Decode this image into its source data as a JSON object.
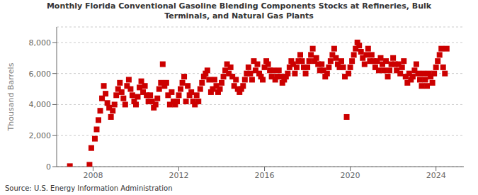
{
  "chart_data": {
    "type": "scatter",
    "title": "Monthly Florida Conventional Gasoline Blending Components Stocks at Refineries, Bulk\nTerminals, and Natural Gas Plants",
    "ylabel": "Thousand Barrels",
    "annotations": [
      "Source: U.S. Energy Information Administration"
    ],
    "color": "#cc0000",
    "marker": "square",
    "grid": true,
    "xlim": [
      2006.3,
      2025.3
    ],
    "xticks": [
      2008,
      2012,
      2016,
      2020,
      2024
    ],
    "ylim": [
      0,
      9000
    ],
    "yticks": [
      0,
      {
        "value": 2000,
        "label": "2,000"
      },
      {
        "value": 4000,
        "label": "4,000"
      },
      {
        "value": 6000,
        "label": "6,000"
      },
      {
        "value": 8000,
        "label": "8,000"
      }
    ],
    "x": [
      2006.917,
      2007.833,
      2007.917,
      2008.083,
      2008.167,
      2008.25,
      2008.333,
      2008.417,
      2008.5,
      2008.583,
      2008.667,
      2008.75,
      2008.833,
      2008.917,
      2009.0,
      2009.083,
      2009.167,
      2009.25,
      2009.333,
      2009.417,
      2009.5,
      2009.583,
      2009.667,
      2009.75,
      2009.833,
      2009.917,
      2010.0,
      2010.083,
      2010.167,
      2010.25,
      2010.333,
      2010.417,
      2010.5,
      2010.583,
      2010.667,
      2010.75,
      2010.833,
      2010.917,
      2011.0,
      2011.083,
      2011.167,
      2011.25,
      2011.333,
      2011.417,
      2011.5,
      2011.583,
      2011.667,
      2011.75,
      2011.833,
      2011.917,
      2012.0,
      2012.083,
      2012.167,
      2012.25,
      2012.333,
      2012.417,
      2012.5,
      2012.583,
      2012.667,
      2012.75,
      2012.833,
      2012.917,
      2013.0,
      2013.083,
      2013.167,
      2013.25,
      2013.333,
      2013.417,
      2013.5,
      2013.583,
      2013.667,
      2013.75,
      2013.833,
      2013.917,
      2014.0,
      2014.083,
      2014.167,
      2014.25,
      2014.333,
      2014.417,
      2014.5,
      2014.583,
      2014.667,
      2014.75,
      2014.833,
      2014.917,
      2015.0,
      2015.083,
      2015.167,
      2015.25,
      2015.333,
      2015.417,
      2015.5,
      2015.583,
      2015.667,
      2015.75,
      2015.833,
      2015.917,
      2016.0,
      2016.083,
      2016.167,
      2016.25,
      2016.333,
      2016.417,
      2016.5,
      2016.583,
      2016.667,
      2016.75,
      2016.833,
      2016.917,
      2017.0,
      2017.083,
      2017.167,
      2017.25,
      2017.333,
      2017.417,
      2017.5,
      2017.583,
      2017.667,
      2017.75,
      2017.833,
      2017.917,
      2018.0,
      2018.083,
      2018.167,
      2018.25,
      2018.333,
      2018.417,
      2018.5,
      2018.583,
      2018.667,
      2018.75,
      2018.833,
      2018.917,
      2019.0,
      2019.083,
      2019.167,
      2019.25,
      2019.333,
      2019.417,
      2019.5,
      2019.583,
      2019.667,
      2019.75,
      2019.833,
      2019.917,
      2020.0,
      2020.083,
      2020.167,
      2020.25,
      2020.333,
      2020.417,
      2020.5,
      2020.583,
      2020.667,
      2020.75,
      2020.833,
      2020.917,
      2021.0,
      2021.083,
      2021.167,
      2021.25,
      2021.333,
      2021.417,
      2021.5,
      2021.583,
      2021.667,
      2021.75,
      2021.833,
      2021.917,
      2022.0,
      2022.083,
      2022.167,
      2022.25,
      2022.333,
      2022.417,
      2022.5,
      2022.583,
      2022.667,
      2022.75,
      2022.833,
      2022.917,
      2023.0,
      2023.083,
      2023.167,
      2023.25,
      2023.333,
      2023.417,
      2023.5,
      2023.583,
      2023.667,
      2023.75,
      2023.833,
      2023.917,
      2024.0,
      2024.083,
      2024.167,
      2024.25,
      2024.333,
      2024.417,
      2024.5
    ],
    "values": [
      30,
      120,
      1200,
      1800,
      2400,
      3000,
      3600,
      4400,
      5200,
      4700,
      4100,
      3800,
      3200,
      3600,
      4000,
      4600,
      5000,
      5400,
      4800,
      4400,
      4000,
      5200,
      5600,
      5000,
      4600,
      4200,
      4000,
      4500,
      5100,
      5500,
      4800,
      5200,
      4600,
      4200,
      4600,
      4200,
      3800,
      4000,
      4400,
      5000,
      5400,
      6600,
      5200,
      5400,
      4600,
      4000,
      4800,
      4200,
      4000,
      4200,
      4600,
      5000,
      5400,
      5800,
      4200,
      5200,
      4600,
      4800,
      4200,
      4000,
      4600,
      4200,
      5000,
      5400,
      5800,
      6000,
      6200,
      5600,
      4800,
      5000,
      5600,
      5200,
      4800,
      5000,
      5400,
      5800,
      6200,
      6600,
      6000,
      6400,
      5800,
      5200,
      5600,
      5000,
      4800,
      5000,
      5200,
      5600,
      6000,
      6400,
      6000,
      5600,
      6800,
      6200,
      6600,
      6000,
      5800,
      5600,
      6400,
      6800,
      6600,
      6200,
      5800,
      6200,
      5600,
      5800,
      6200,
      5800,
      5400,
      5600,
      5800,
      6000,
      6400,
      6800,
      6600,
      6000,
      6400,
      6800,
      7200,
      6800,
      6400,
      6000,
      6400,
      6800,
      7200,
      7600,
      6800,
      7000,
      6600,
      6200,
      6600,
      6200,
      5800,
      6000,
      6400,
      6800,
      7200,
      7600,
      7000,
      6600,
      6400,
      6800,
      6400,
      5800,
      3200,
      6000,
      6400,
      6800,
      7200,
      7600,
      8000,
      7800,
      7400,
      7000,
      6600,
      7200,
      7600,
      6800,
      7200,
      6800,
      6400,
      6800,
      6200,
      7000,
      6600,
      6200,
      6800,
      5800,
      6200,
      6600,
      7000,
      6600,
      6200,
      6600,
      6000,
      6400,
      6800,
      5800,
      5400,
      6000,
      5600,
      5800,
      6200,
      6600,
      6000,
      5600,
      5200,
      6000,
      5600,
      5200,
      6000,
      5800,
      5400,
      6000,
      6400,
      6800,
      7200,
      7600,
      6400,
      6000,
      7600
    ]
  }
}
